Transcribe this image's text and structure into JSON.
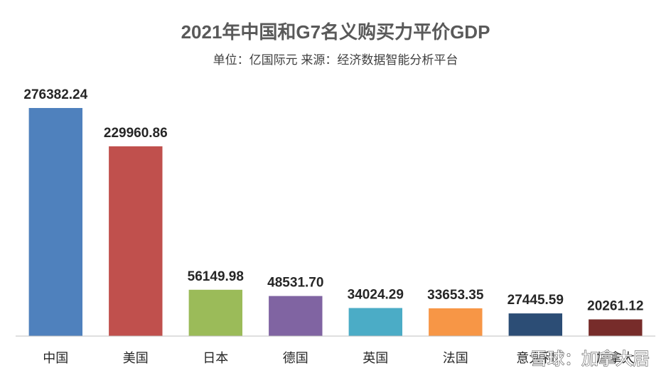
{
  "chart_data": {
    "type": "bar",
    "title": "2021年中国和G7名义购买力平价GDP",
    "subtitle": "单位：亿国际元 来源：经济数据智能分析平台",
    "categories": [
      "中国",
      "美国",
      "日本",
      "德国",
      "英国",
      "法国",
      "意大利",
      "加拿大"
    ],
    "values": [
      276382.24,
      229960.86,
      56149.98,
      48531.7,
      34024.29,
      33653.35,
      27445.59,
      20261.12
    ],
    "value_labels": [
      "276382.24",
      "229960.86",
      "56149.98",
      "48531.70",
      "34024.29",
      "33653.35",
      "27445.59",
      "20261.12"
    ],
    "colors": [
      "#4f81bd",
      "#c0504d",
      "#9bbb59",
      "#8064a2",
      "#4bacc6",
      "#f79646",
      "#2c4d75",
      "#772c2a"
    ],
    "ylim": [
      0,
      276382.24
    ],
    "grid": false,
    "legend": "none"
  },
  "watermark": "雪球：加拿大居"
}
